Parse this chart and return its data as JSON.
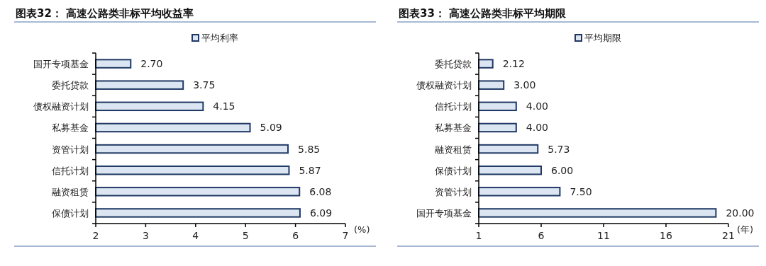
{
  "chart_data": [
    {
      "type": "bar",
      "orientation": "horizontal",
      "title": "图表32：  高速公路类非标平均收益率",
      "xlabel": "(%)",
      "categories": [
        "国开专项基金",
        "委托贷款",
        "债权融资计划",
        "私募基金",
        "资管计划",
        "信托计划",
        "融资租赁",
        "保债计划"
      ],
      "series": [
        {
          "name": "平均利率",
          "color": "#dce6f2",
          "values": [
            2.7,
            3.75,
            4.15,
            5.09,
            5.85,
            5.87,
            6.08,
            6.09
          ],
          "value_labels": [
            "2.70",
            "3.75",
            "4.15",
            "5.09",
            "5.85",
            "5.87",
            "6.08",
            "6.09"
          ]
        }
      ],
      "xlim": [
        2,
        7
      ],
      "xticks": [
        2,
        3,
        4,
        5,
        6,
        7
      ],
      "legend": "top",
      "grid": false
    },
    {
      "type": "bar",
      "orientation": "horizontal",
      "title": "图表33：  高速公路类非标平均期限",
      "xlabel": "(年)",
      "categories": [
        "委托贷款",
        "债权融资计划",
        "信托计划",
        "私募基金",
        "融资租赁",
        "保债计划",
        "资管计划",
        "国开专项基金"
      ],
      "series": [
        {
          "name": "平均期限",
          "color": "#dce6f2",
          "values": [
            2.12,
            3.0,
            4.0,
            4.0,
            5.73,
            6.0,
            7.5,
            20.0
          ],
          "value_labels": [
            "2.12",
            "3.00",
            "4.00",
            "4.00",
            "5.73",
            "6.00",
            "7.50",
            "20.00"
          ]
        }
      ],
      "xlim": [
        1,
        21
      ],
      "xticks": [
        1,
        6,
        11,
        16,
        21
      ],
      "legend": "top",
      "grid": false
    }
  ]
}
